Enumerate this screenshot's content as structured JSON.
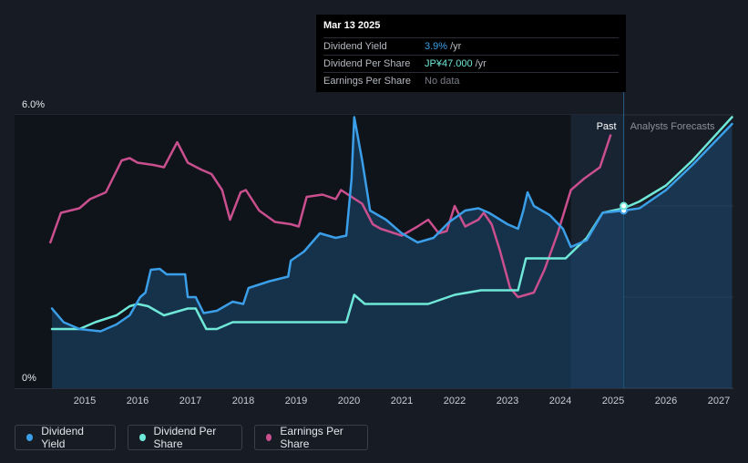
{
  "tooltip": {
    "date": "Mar 13 2025",
    "rows": [
      {
        "name": "Dividend Yield",
        "value": "3.9%",
        "unit": "/yr",
        "color": "#3a9fe8"
      },
      {
        "name": "Dividend Per Share",
        "value": "JP¥47.000",
        "unit": "/yr",
        "color": "#6fe8d8"
      },
      {
        "name": "Earnings Per Share",
        "value": "No data",
        "unit": "",
        "color": "#7b7f87"
      }
    ]
  },
  "legend": [
    {
      "label": "Dividend Yield",
      "color": "#3a9fe8"
    },
    {
      "label": "Dividend Per Share",
      "color": "#6fe8d8"
    },
    {
      "label": "Earnings Per Share",
      "color": "#c94f8e"
    }
  ],
  "chart_data": {
    "type": "line",
    "x_ticks": [
      "2015",
      "2016",
      "2017",
      "2018",
      "2019",
      "2020",
      "2021",
      "2022",
      "2023",
      "2024",
      "2025",
      "2026",
      "2027"
    ],
    "y_labels": [
      "6.0%",
      "0%"
    ],
    "xlim": [
      2014.4,
      2027.25
    ],
    "ylim": [
      0,
      6.0
    ],
    "regions": {
      "past": "Past",
      "forecast": "Analysts Forecasts",
      "split_x": 2025.2,
      "shade_start": 2024.2
    },
    "grid": true,
    "colors": {
      "dividend_yield": "#3a9fe8",
      "dividend_per_share": "#6fe8d8",
      "earnings_per_share": "#c94f8e"
    },
    "series": [
      {
        "name": "Dividend Yield",
        "key": "dividend_yield",
        "points": [
          [
            2014.38,
            1.75
          ],
          [
            2014.6,
            1.45
          ],
          [
            2014.9,
            1.3
          ],
          [
            2015.3,
            1.25
          ],
          [
            2015.6,
            1.4
          ],
          [
            2015.85,
            1.6
          ],
          [
            2016.05,
            2.0
          ],
          [
            2016.15,
            2.1
          ],
          [
            2016.25,
            2.6
          ],
          [
            2016.42,
            2.62
          ],
          [
            2016.55,
            2.5
          ],
          [
            2016.9,
            2.5
          ],
          [
            2016.95,
            2.0
          ],
          [
            2017.1,
            2.0
          ],
          [
            2017.25,
            1.65
          ],
          [
            2017.5,
            1.7
          ],
          [
            2017.8,
            1.9
          ],
          [
            2018.0,
            1.85
          ],
          [
            2018.1,
            2.2
          ],
          [
            2018.5,
            2.35
          ],
          [
            2018.85,
            2.45
          ],
          [
            2018.9,
            2.8
          ],
          [
            2019.15,
            3.0
          ],
          [
            2019.45,
            3.4
          ],
          [
            2019.75,
            3.3
          ],
          [
            2019.95,
            3.35
          ],
          [
            2020.05,
            4.6
          ],
          [
            2020.1,
            5.95
          ],
          [
            2020.25,
            5.0
          ],
          [
            2020.4,
            3.9
          ],
          [
            2020.7,
            3.7
          ],
          [
            2021.0,
            3.4
          ],
          [
            2021.3,
            3.2
          ],
          [
            2021.6,
            3.3
          ],
          [
            2021.9,
            3.65
          ],
          [
            2022.2,
            3.9
          ],
          [
            2022.45,
            3.95
          ],
          [
            2022.65,
            3.85
          ],
          [
            2023.0,
            3.6
          ],
          [
            2023.2,
            3.5
          ],
          [
            2023.3,
            3.9
          ],
          [
            2023.38,
            4.3
          ],
          [
            2023.5,
            4.0
          ],
          [
            2023.8,
            3.8
          ],
          [
            2024.05,
            3.5
          ],
          [
            2024.2,
            3.1
          ],
          [
            2024.5,
            3.25
          ],
          [
            2024.8,
            3.85
          ],
          [
            2025.2,
            3.9
          ],
          [
            2025.5,
            3.95
          ],
          [
            2026.0,
            4.35
          ],
          [
            2026.5,
            4.9
          ],
          [
            2027.25,
            5.8
          ]
        ]
      },
      {
        "name": "Dividend Per Share",
        "key": "dividend_per_share",
        "points": [
          [
            2014.38,
            1.3
          ],
          [
            2014.9,
            1.3
          ],
          [
            2015.2,
            1.45
          ],
          [
            2015.6,
            1.6
          ],
          [
            2015.85,
            1.8
          ],
          [
            2016.0,
            1.85
          ],
          [
            2016.2,
            1.8
          ],
          [
            2016.5,
            1.6
          ],
          [
            2016.95,
            1.75
          ],
          [
            2017.1,
            1.75
          ],
          [
            2017.3,
            1.3
          ],
          [
            2017.5,
            1.3
          ],
          [
            2017.8,
            1.45
          ],
          [
            2019.95,
            1.45
          ],
          [
            2020.1,
            2.05
          ],
          [
            2020.3,
            1.85
          ],
          [
            2021.5,
            1.85
          ],
          [
            2022.0,
            2.05
          ],
          [
            2022.5,
            2.15
          ],
          [
            2023.2,
            2.15
          ],
          [
            2023.35,
            2.85
          ],
          [
            2024.1,
            2.85
          ],
          [
            2024.5,
            3.3
          ],
          [
            2024.8,
            3.85
          ],
          [
            2025.2,
            3.95
          ],
          [
            2025.5,
            4.1
          ],
          [
            2026.0,
            4.45
          ],
          [
            2026.5,
            5.0
          ],
          [
            2027.25,
            5.95
          ]
        ]
      },
      {
        "name": "Earnings Per Share",
        "key": "earnings_per_share",
        "points": [
          [
            2014.35,
            3.2
          ],
          [
            2014.55,
            3.85
          ],
          [
            2014.9,
            3.95
          ],
          [
            2015.1,
            4.15
          ],
          [
            2015.4,
            4.3
          ],
          [
            2015.7,
            5.0
          ],
          [
            2015.85,
            5.05
          ],
          [
            2016.0,
            4.95
          ],
          [
            2016.3,
            4.9
          ],
          [
            2016.5,
            4.85
          ],
          [
            2016.75,
            5.4
          ],
          [
            2016.95,
            4.95
          ],
          [
            2017.2,
            4.8
          ],
          [
            2017.4,
            4.7
          ],
          [
            2017.6,
            4.35
          ],
          [
            2017.75,
            3.7
          ],
          [
            2017.95,
            4.3
          ],
          [
            2018.05,
            4.35
          ],
          [
            2018.3,
            3.9
          ],
          [
            2018.6,
            3.65
          ],
          [
            2018.9,
            3.6
          ],
          [
            2019.05,
            3.55
          ],
          [
            2019.2,
            4.2
          ],
          [
            2019.5,
            4.25
          ],
          [
            2019.75,
            4.15
          ],
          [
            2019.85,
            4.35
          ],
          [
            2020.25,
            4.05
          ],
          [
            2020.45,
            3.6
          ],
          [
            2020.6,
            3.5
          ],
          [
            2021.0,
            3.35
          ],
          [
            2021.3,
            3.55
          ],
          [
            2021.5,
            3.7
          ],
          [
            2021.7,
            3.4
          ],
          [
            2021.85,
            3.45
          ],
          [
            2022.0,
            4.0
          ],
          [
            2022.2,
            3.55
          ],
          [
            2022.45,
            3.7
          ],
          [
            2022.55,
            3.85
          ],
          [
            2022.7,
            3.6
          ],
          [
            2022.85,
            3.05
          ],
          [
            2023.05,
            2.2
          ],
          [
            2023.2,
            2.0
          ],
          [
            2023.5,
            2.1
          ],
          [
            2023.7,
            2.6
          ],
          [
            2023.95,
            3.4
          ],
          [
            2024.2,
            4.35
          ],
          [
            2024.45,
            4.6
          ],
          [
            2024.75,
            4.85
          ],
          [
            2024.95,
            5.55
          ]
        ]
      }
    ],
    "markers": [
      {
        "series": "dividend_yield",
        "x": 2025.2,
        "y": 3.9
      },
      {
        "series": "dividend_per_share",
        "x": 2025.2,
        "y": 4.0
      }
    ]
  }
}
